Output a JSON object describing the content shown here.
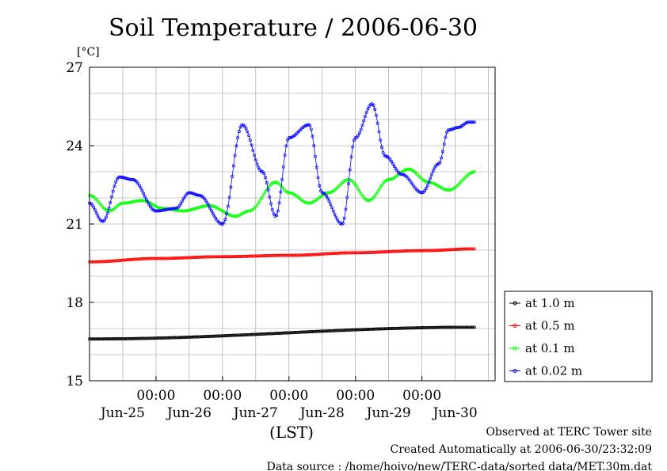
{
  "chart_data": {
    "type": "line",
    "title": "Soil Temperature / 2006-06-30",
    "ylabel": "[°C]",
    "xlabel": "(LST)",
    "ylim": [
      15,
      27
    ],
    "yticks": [
      15,
      18,
      21,
      24,
      27
    ],
    "xlim": [
      0,
      6.1
    ],
    "xticks_time": [
      "00:00",
      "00:00",
      "00:00",
      "00:00",
      "00:00"
    ],
    "xticks_date": [
      "Jun-25",
      "Jun-26",
      "Jun-27",
      "Jun-28",
      "Jun-29",
      "Jun-30"
    ],
    "grid": true,
    "legend_position": "right",
    "series": [
      {
        "name": "at 1.0 m",
        "color": "#000000",
        "x": [
          0,
          5.8
        ],
        "y": [
          16.6,
          17.05
        ]
      },
      {
        "name": "at 0.5 m",
        "color": "#ff0000",
        "x": [
          0,
          1,
          2,
          3,
          4,
          5,
          5.8
        ],
        "y": [
          19.55,
          19.68,
          19.75,
          19.8,
          19.9,
          19.98,
          20.05
        ]
      },
      {
        "name": "at 0.1 m",
        "color": "#00ff00",
        "x": [
          0,
          0.3,
          0.5,
          0.8,
          1.1,
          1.4,
          1.8,
          2.2,
          2.4,
          2.8,
          3.0,
          3.3,
          3.6,
          3.9,
          4.2,
          4.5,
          4.8,
          5.1,
          5.4,
          5.8
        ],
        "y": [
          22.1,
          21.5,
          21.8,
          21.9,
          21.6,
          21.5,
          21.7,
          21.3,
          21.5,
          22.6,
          22.2,
          21.8,
          22.2,
          22.7,
          21.9,
          22.7,
          23.1,
          22.6,
          22.3,
          23.0
        ]
      },
      {
        "name": "at 0.02 m",
        "color": "#0000ff",
        "x": [
          0,
          0.2,
          0.45,
          0.65,
          1.0,
          1.3,
          1.5,
          1.65,
          2.0,
          2.3,
          2.6,
          2.8,
          3.0,
          3.3,
          3.5,
          3.8,
          4.0,
          4.25,
          4.45,
          4.7,
          5.0,
          5.25,
          5.4,
          5.55,
          5.7,
          5.8
        ],
        "y": [
          21.8,
          21.1,
          22.8,
          22.7,
          21.5,
          21.6,
          22.2,
          22.1,
          21.0,
          24.8,
          23.0,
          21.3,
          24.3,
          24.8,
          22.2,
          21.0,
          24.3,
          25.6,
          23.6,
          22.9,
          22.2,
          23.3,
          24.6,
          24.7,
          24.9,
          24.9
        ]
      }
    ]
  },
  "footer": {
    "observed": "Observed at TERC Tower site",
    "created": "Created Automatically at 2006-06-30/23:32:09",
    "source": "Data source : /home/hoivo/new/TERC-data/sorted  data/MET.30m.dat"
  }
}
